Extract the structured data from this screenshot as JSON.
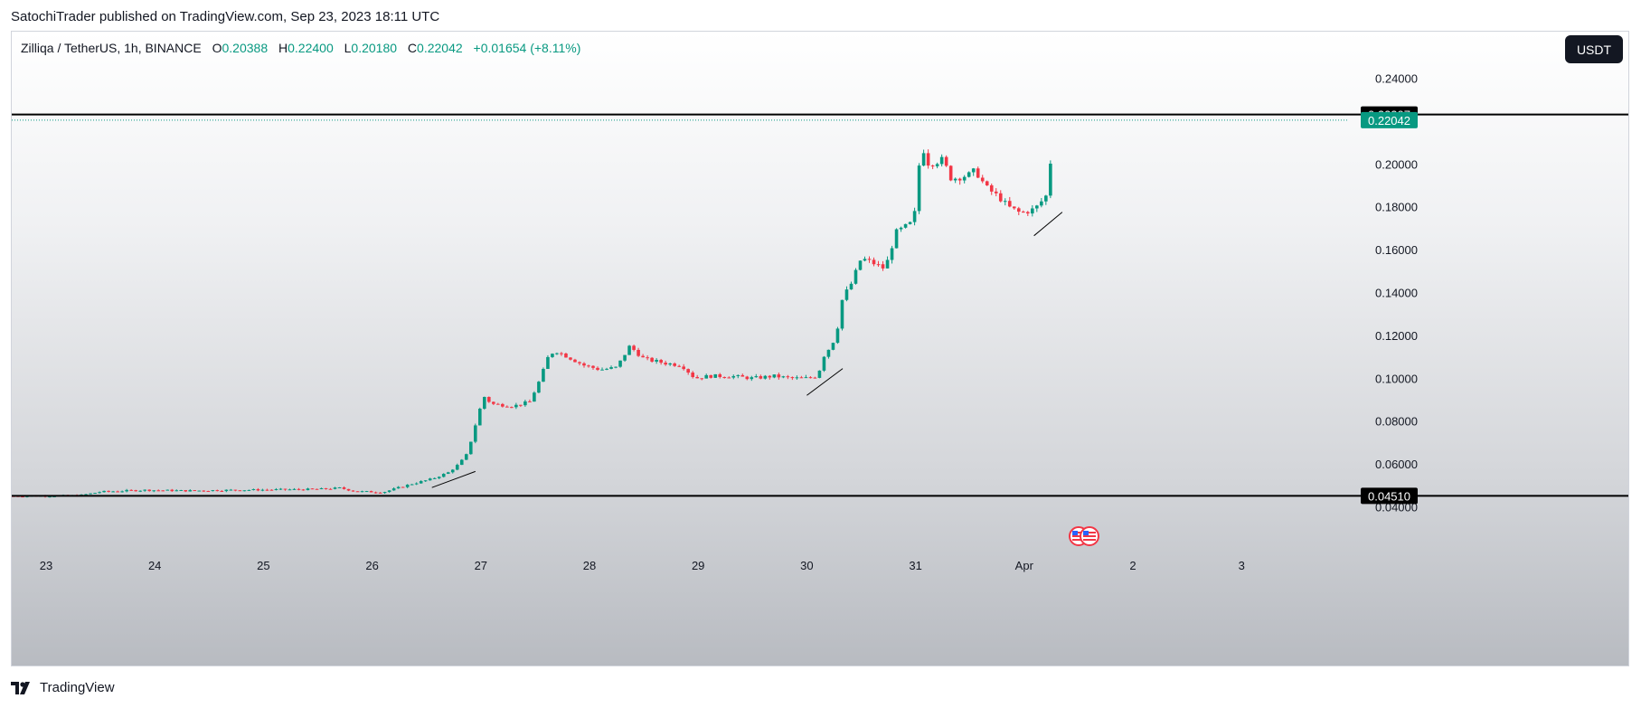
{
  "header": {
    "credit": "SatochiTrader published on TradingView.com, Sep 23, 2023 18:11 UTC"
  },
  "legend": {
    "symbol": "Zilliqa / TetherUS, 1h, BINANCE",
    "open_label": "O",
    "open": "0.20388",
    "high_label": "H",
    "high": "0.22400",
    "low_label": "L",
    "low": "0.20180",
    "close_label": "C",
    "close": "0.22042",
    "change": "+0.01654 (+8.11%)"
  },
  "currency_button": "USDT",
  "brand": {
    "label": "TradingView"
  },
  "colors": {
    "up": "#089981",
    "down": "#f23645",
    "text": "#131722",
    "line": "#000000",
    "frame": "#d1d4dc"
  },
  "icons": {
    "events": "us-flag-event-icon",
    "brand": "tradingview-logo-icon"
  },
  "chart_data": {
    "type": "candlestick",
    "title": "",
    "xlabel": "",
    "ylabel": "",
    "ylim": [
      0.03,
      0.26
    ],
    "grid": false,
    "y_ticks": [
      "0.04000",
      "0.06000",
      "0.08000",
      "0.10000",
      "0.12000",
      "0.14000",
      "0.16000",
      "0.18000",
      "0.20000",
      "0.24000"
    ],
    "x_ticks": [
      "23",
      "24",
      "25",
      "26",
      "27",
      "28",
      "29",
      "30",
      "31",
      "Apr",
      "2",
      "3"
    ],
    "horizontal_lines": [
      {
        "label": "0.22307",
        "value": 0.22307
      },
      {
        "label": "0.04510",
        "value": 0.0451
      }
    ],
    "last_price": {
      "label": "0.22042",
      "value": 0.22042
    },
    "annotations": [
      {
        "type": "trendline",
        "from": [
          26.55,
          0.049
        ],
        "to": [
          26.95,
          0.0565
        ]
      },
      {
        "type": "trendline",
        "from": [
          30.0,
          0.092
        ],
        "to": [
          30.33,
          0.1045
        ]
      },
      {
        "type": "trendline",
        "from": [
          32.09,
          0.1665
        ],
        "to": [
          32.35,
          0.1775
        ]
      }
    ],
    "price_path": [
      [
        22.7,
        0.045
      ],
      [
        23.3,
        0.0452
      ],
      [
        23.5,
        0.047
      ],
      [
        23.9,
        0.0478
      ],
      [
        24.3,
        0.0475
      ],
      [
        24.7,
        0.0478
      ],
      [
        25.1,
        0.048
      ],
      [
        25.5,
        0.0482
      ],
      [
        25.7,
        0.0488
      ],
      [
        25.85,
        0.0472
      ],
      [
        26.1,
        0.0468
      ],
      [
        26.35,
        0.0505
      ],
      [
        26.55,
        0.053
      ],
      [
        26.7,
        0.056
      ],
      [
        26.8,
        0.06
      ],
      [
        26.88,
        0.065
      ],
      [
        26.93,
        0.075
      ],
      [
        26.98,
        0.083
      ],
      [
        27.02,
        0.092
      ],
      [
        27.1,
        0.088
      ],
      [
        27.3,
        0.087
      ],
      [
        27.45,
        0.089
      ],
      [
        27.55,
        0.1
      ],
      [
        27.62,
        0.11
      ],
      [
        27.68,
        0.113
      ],
      [
        27.8,
        0.11
      ],
      [
        27.95,
        0.106
      ],
      [
        28.1,
        0.104
      ],
      [
        28.25,
        0.105
      ],
      [
        28.37,
        0.115
      ],
      [
        28.5,
        0.109
      ],
      [
        28.7,
        0.107
      ],
      [
        28.85,
        0.106
      ],
      [
        28.97,
        0.1
      ],
      [
        29.1,
        0.101
      ],
      [
        29.3,
        0.101
      ],
      [
        29.5,
        0.1
      ],
      [
        29.7,
        0.101
      ],
      [
        29.85,
        0.1
      ],
      [
        30.0,
        0.1
      ],
      [
        30.1,
        0.101
      ],
      [
        30.15,
        0.11
      ],
      [
        30.22,
        0.115
      ],
      [
        30.27,
        0.12
      ],
      [
        30.33,
        0.138
      ],
      [
        30.4,
        0.143
      ],
      [
        30.5,
        0.156
      ],
      [
        30.6,
        0.154
      ],
      [
        30.72,
        0.151
      ],
      [
        30.82,
        0.168
      ],
      [
        30.95,
        0.172
      ],
      [
        31.0,
        0.178
      ],
      [
        31.05,
        0.21
      ],
      [
        31.12,
        0.2
      ],
      [
        31.25,
        0.202
      ],
      [
        31.33,
        0.193
      ],
      [
        31.5,
        0.195
      ],
      [
        31.55,
        0.197
      ],
      [
        31.65,
        0.189
      ],
      [
        31.78,
        0.184
      ],
      [
        31.85,
        0.18
      ],
      [
        31.97,
        0.177
      ],
      [
        32.1,
        0.179
      ],
      [
        32.2,
        0.185
      ],
      [
        32.25,
        0.204
      ],
      [
        32.28,
        0.2204
      ]
    ]
  }
}
